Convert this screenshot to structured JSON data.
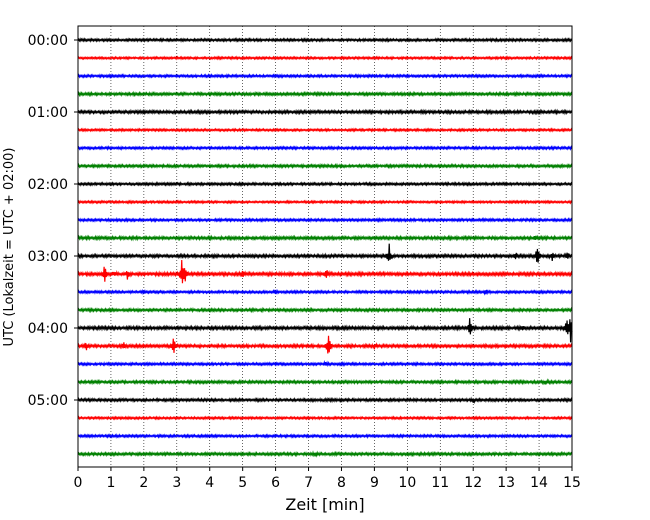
{
  "chart_data": {
    "type": "line",
    "title": "",
    "xlabel": "Zeit  [min]",
    "ylabel": "UTC (Lokalzeit = UTC + 02:00)",
    "xlim": [
      0,
      15
    ],
    "x_ticks": [
      0,
      1,
      2,
      3,
      4,
      5,
      6,
      7,
      8,
      9,
      10,
      11,
      12,
      13,
      14,
      15
    ],
    "y_tick_labels": [
      "00:00",
      "01:00",
      "02:00",
      "03:00",
      "04:00",
      "05:00"
    ],
    "minutes_per_trace": 15,
    "grid": "vertical dotted lines at each minute",
    "colors_cycle": [
      "#000000",
      "#ff0000",
      "#0000ff",
      "#008000"
    ],
    "traces": [
      {
        "start": "00:00",
        "color": "#000000",
        "noise": 1.0,
        "events": []
      },
      {
        "start": "00:15",
        "color": "#ff0000",
        "noise": 0.9,
        "events": []
      },
      {
        "start": "00:30",
        "color": "#0000ff",
        "noise": 1.0,
        "events": []
      },
      {
        "start": "00:45",
        "color": "#008000",
        "noise": 1.1,
        "events": []
      },
      {
        "start": "01:00",
        "color": "#000000",
        "noise": 1.2,
        "events": []
      },
      {
        "start": "01:15",
        "color": "#ff0000",
        "noise": 0.9,
        "events": []
      },
      {
        "start": "01:30",
        "color": "#0000ff",
        "noise": 1.0,
        "events": []
      },
      {
        "start": "01:45",
        "color": "#008000",
        "noise": 1.1,
        "events": []
      },
      {
        "start": "02:00",
        "color": "#000000",
        "noise": 1.0,
        "events": []
      },
      {
        "start": "02:15",
        "color": "#ff0000",
        "noise": 0.9,
        "events": []
      },
      {
        "start": "02:30",
        "color": "#0000ff",
        "noise": 1.0,
        "events": []
      },
      {
        "start": "02:45",
        "color": "#008000",
        "noise": 1.2,
        "events": [
          {
            "t": 13.9,
            "amp": 2
          }
        ]
      },
      {
        "start": "03:00",
        "color": "#000000",
        "noise": 1.2,
        "events": [
          {
            "t": 9.45,
            "amp": 12
          },
          {
            "t": 13.3,
            "amp": 3
          },
          {
            "t": 13.95,
            "amp": 14
          },
          {
            "t": 14.4,
            "amp": 4
          },
          {
            "t": 14.85,
            "amp": 5
          }
        ]
      },
      {
        "start": "03:15",
        "color": "#ff0000",
        "noise": 1.3,
        "events": [
          {
            "t": 0.8,
            "amp": 11
          },
          {
            "t": 1.1,
            "amp": 3
          },
          {
            "t": 1.5,
            "amp": 5
          },
          {
            "t": 3.15,
            "amp": 16
          },
          {
            "t": 3.25,
            "amp": 8
          },
          {
            "t": 5.0,
            "amp": 3
          },
          {
            "t": 7.55,
            "amp": 7
          }
        ]
      },
      {
        "start": "03:30",
        "color": "#0000ff",
        "noise": 1.0,
        "events": [
          {
            "t": 2.0,
            "amp": 2
          },
          {
            "t": 6.0,
            "amp": 2
          },
          {
            "t": 12.4,
            "amp": 2
          }
        ]
      },
      {
        "start": "03:45",
        "color": "#008000",
        "noise": 1.1,
        "events": []
      },
      {
        "start": "04:00",
        "color": "#000000",
        "noise": 1.3,
        "events": [
          {
            "t": 11.9,
            "amp": 11
          },
          {
            "t": 13.5,
            "amp": 2
          },
          {
            "t": 14.85,
            "amp": 12
          },
          {
            "t": 14.95,
            "amp": 16
          }
        ]
      },
      {
        "start": "04:15",
        "color": "#ff0000",
        "noise": 1.2,
        "events": [
          {
            "t": 0.25,
            "amp": 4
          },
          {
            "t": 1.4,
            "amp": 4
          },
          {
            "t": 2.9,
            "amp": 10
          },
          {
            "t": 7.6,
            "amp": 16
          },
          {
            "t": 9.0,
            "amp": 2
          }
        ]
      },
      {
        "start": "04:30",
        "color": "#0000ff",
        "noise": 1.0,
        "events": [
          {
            "t": 7.5,
            "amp": 2
          }
        ]
      },
      {
        "start": "04:45",
        "color": "#008000",
        "noise": 1.1,
        "events": [
          {
            "t": 14.2,
            "amp": 2
          }
        ]
      },
      {
        "start": "05:00",
        "color": "#000000",
        "noise": 1.1,
        "events": [
          {
            "t": 12.0,
            "amp": 2
          }
        ]
      },
      {
        "start": "05:15",
        "color": "#ff0000",
        "noise": 0.9,
        "events": []
      },
      {
        "start": "05:30",
        "color": "#0000ff",
        "noise": 1.0,
        "events": []
      },
      {
        "start": "05:45",
        "color": "#008000",
        "noise": 1.1,
        "events": [
          {
            "t": 7.2,
            "amp": 3
          }
        ]
      }
    ]
  }
}
